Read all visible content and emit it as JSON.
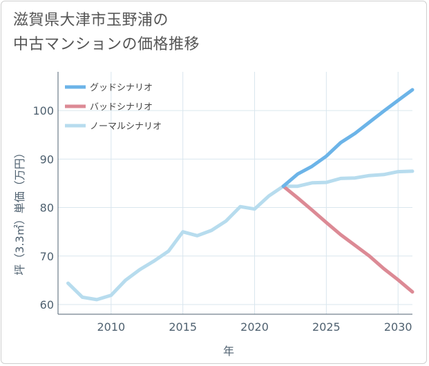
{
  "title_lines": [
    "滋賀県大津市玉野浦の",
    "中古マンションの価格推移"
  ],
  "colors": {
    "good": "#6cb4e8",
    "bad": "#dc8a95",
    "normal": "#b7dcee",
    "grid": "#d9e6ee",
    "axis": "#4f6170"
  },
  "chart_data": {
    "type": "line",
    "xlabel": "年",
    "ylabel": "坪（3.3㎡）単価（万円）",
    "xlim": [
      2006.3,
      2031
    ],
    "ylim": [
      58,
      108
    ],
    "x_ticks": [
      2010,
      2015,
      2020,
      2025,
      2030
    ],
    "y_ticks": [
      60,
      70,
      80,
      90,
      100
    ],
    "grid": true,
    "legend_position": "top-left",
    "series": [
      {
        "key": "good",
        "name": "グッドシナリオ",
        "x": [
          2022,
          2023,
          2024,
          2025,
          2026,
          2027,
          2028,
          2029,
          2030,
          2031
        ],
        "y": [
          84.4,
          86.9,
          88.5,
          90.6,
          93.4,
          95.3,
          97.6,
          99.9,
          102.1,
          104.3
        ]
      },
      {
        "key": "bad",
        "name": "バッドシナリオ",
        "x": [
          2022,
          2023,
          2024,
          2025,
          2026,
          2027,
          2028,
          2029,
          2030,
          2031
        ],
        "y": [
          84.4,
          82.0,
          79.5,
          76.9,
          74.4,
          72.2,
          70.0,
          67.4,
          65.1,
          62.6
        ]
      },
      {
        "key": "normal",
        "name": "ノーマルシナリオ",
        "x": [
          2007,
          2008,
          2009,
          2010,
          2011,
          2012,
          2013,
          2014,
          2015,
          2016,
          2017,
          2018,
          2019,
          2020,
          2021,
          2022,
          2023,
          2024,
          2025,
          2026,
          2027,
          2028,
          2029,
          2030,
          2031
        ],
        "y": [
          64.4,
          61.5,
          61.0,
          61.9,
          65.0,
          67.2,
          69.0,
          71.0,
          75.0,
          74.2,
          75.3,
          77.2,
          80.2,
          79.7,
          82.4,
          84.4,
          84.4,
          85.1,
          85.2,
          86.0,
          86.1,
          86.6,
          86.8,
          87.4,
          87.5
        ]
      }
    ]
  }
}
